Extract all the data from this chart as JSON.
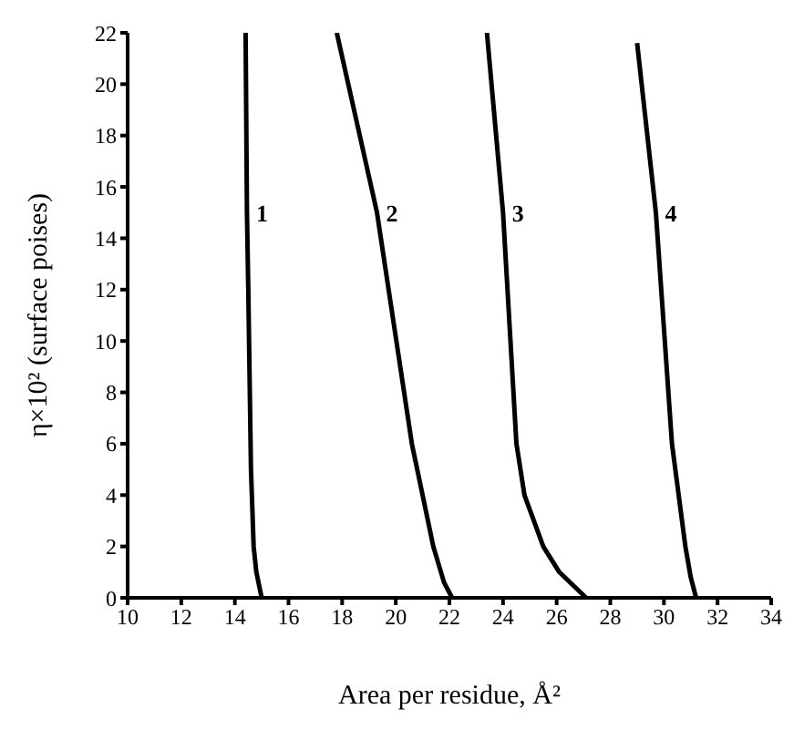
{
  "chart_data": {
    "type": "line",
    "xlabel": "Area per residue, Å²",
    "ylabel": "η×10² (surface poises)",
    "xlim": [
      10,
      34
    ],
    "xticks": [
      10,
      12,
      14,
      16,
      18,
      20,
      22,
      24,
      26,
      28,
      30,
      32,
      34
    ],
    "ylim": [
      0,
      22
    ],
    "yticks": [
      0,
      2,
      4,
      6,
      8,
      10,
      12,
      14,
      16,
      18,
      20,
      22
    ],
    "grid": false,
    "legend": false,
    "marker": "none",
    "line_style": "solid",
    "series": [
      {
        "name": "1",
        "color": "#000000",
        "x": [
          14.4,
          14.45,
          14.5,
          14.6,
          14.7,
          14.8,
          15.0
        ],
        "values": [
          22,
          15,
          12,
          5,
          2,
          1,
          0
        ]
      },
      {
        "name": "2",
        "color": "#000000",
        "x": [
          17.8,
          19.3,
          20.6,
          21.0,
          21.4,
          21.8,
          22.1
        ],
        "values": [
          22,
          15,
          6,
          4,
          2,
          0.6,
          0
        ]
      },
      {
        "name": "3",
        "color": "#000000",
        "x": [
          23.4,
          24.0,
          24.5,
          24.8,
          25.5,
          26.1,
          27.1
        ],
        "values": [
          22,
          15,
          6,
          4,
          2,
          1,
          0
        ]
      },
      {
        "name": "4",
        "color": "#000000",
        "x": [
          29.0,
          29.7,
          30.3,
          30.8,
          31.0,
          31.2
        ],
        "values": [
          21.6,
          15,
          6,
          2,
          0.8,
          0
        ]
      }
    ]
  }
}
